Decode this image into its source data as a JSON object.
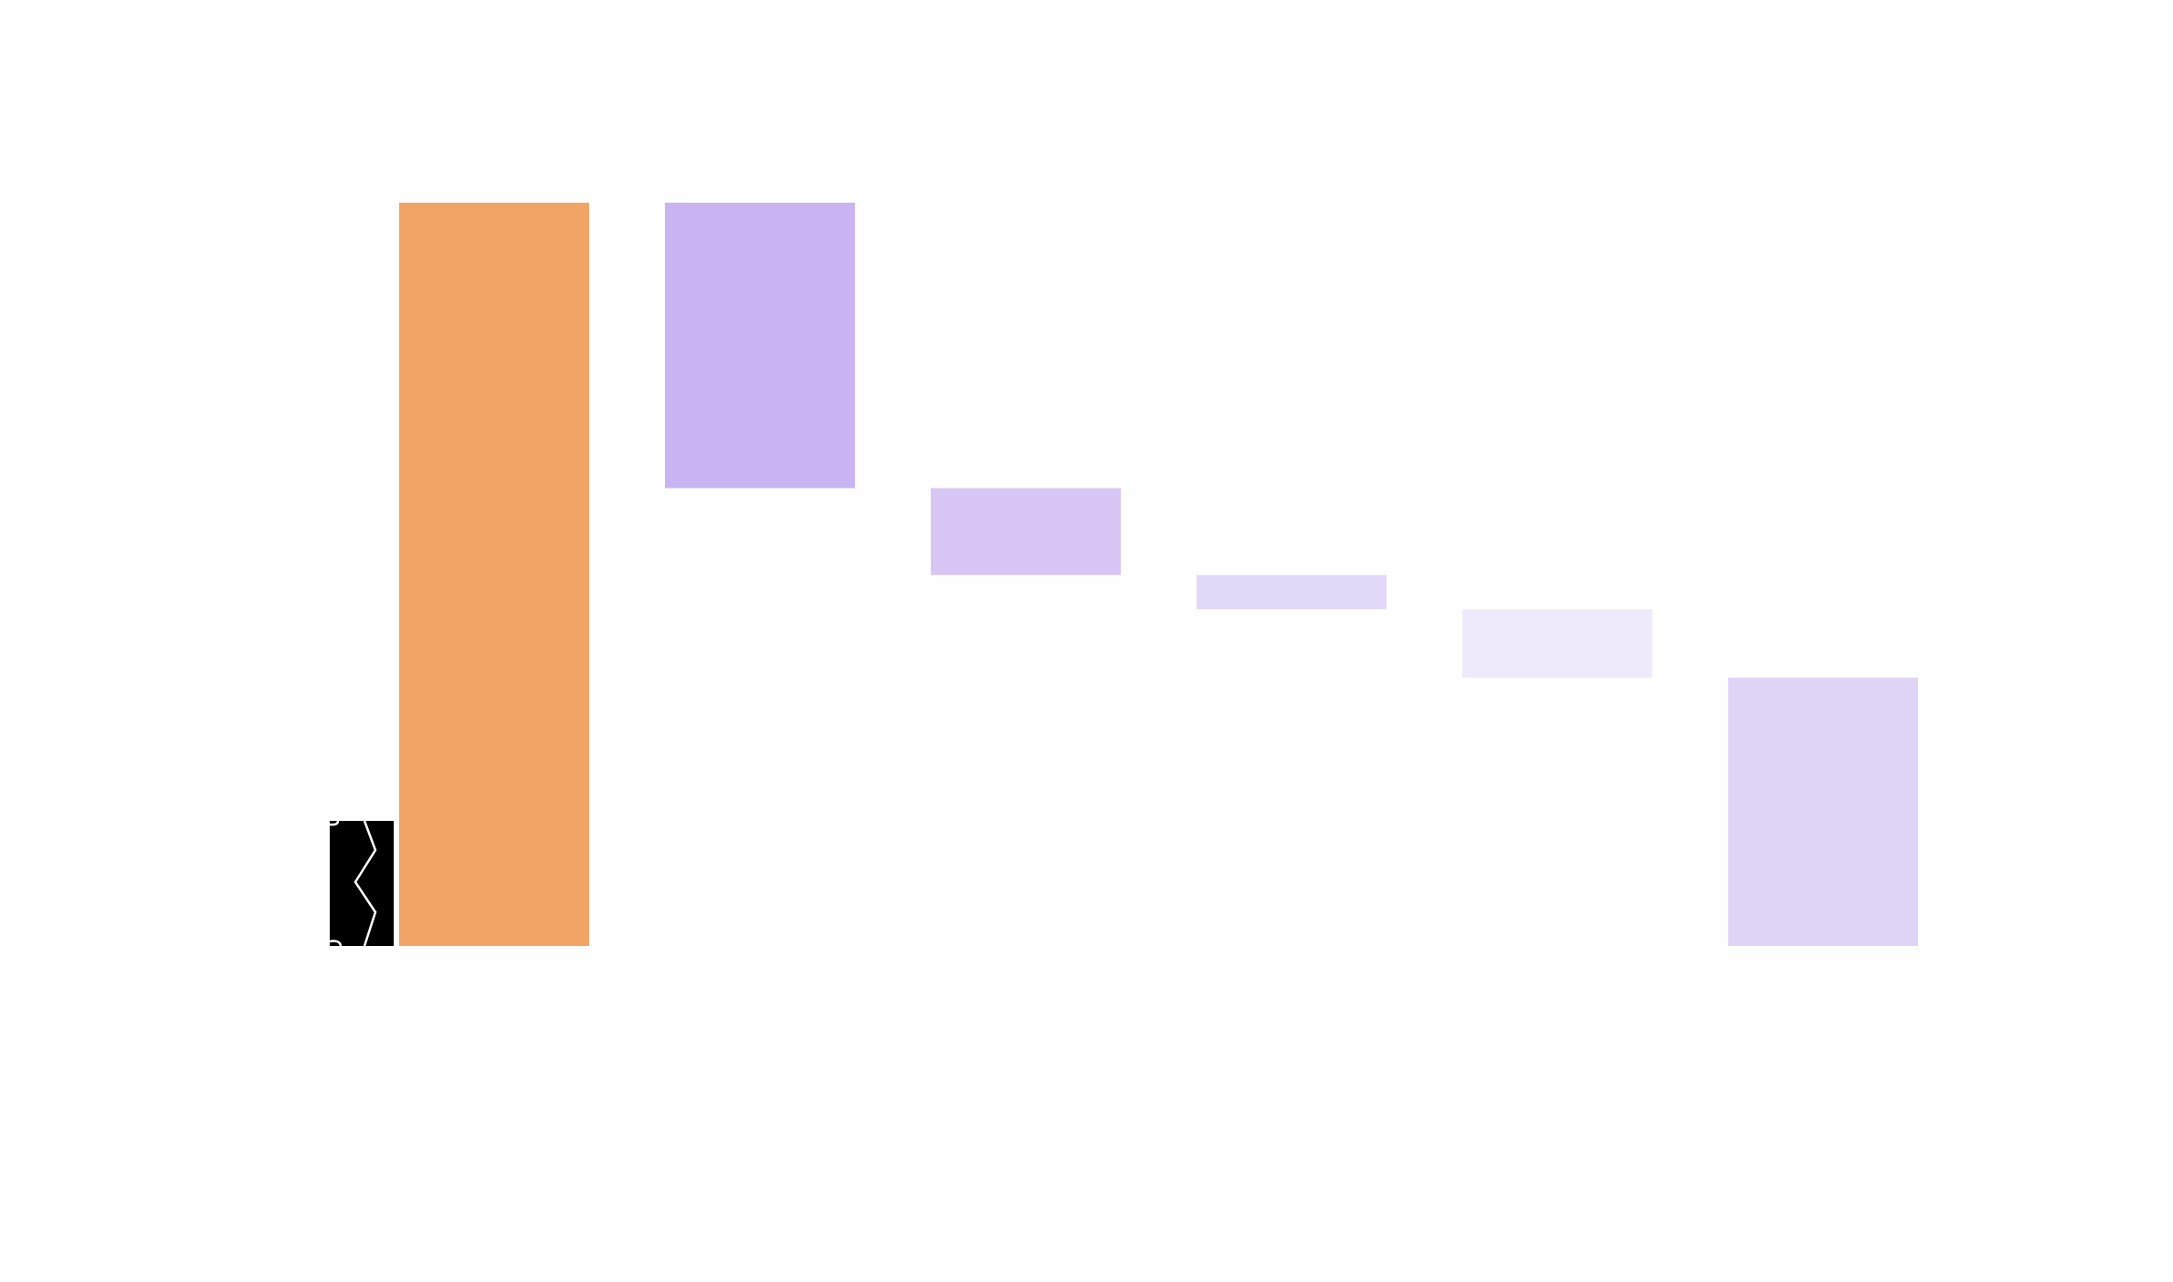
{
  "chart_data": {
    "type": "bar",
    "subtype": "waterfall",
    "title": "",
    "xlabel": "",
    "ylabel": "",
    "categories": [],
    "axis_break": true,
    "grid": false,
    "legend": "none",
    "ylim": [
      0,
      100
    ],
    "steps": [
      {
        "kind": "total",
        "start": 0,
        "end": 100,
        "color": "#f2a366"
      },
      {
        "kind": "decrease",
        "start": 100,
        "end": 61.6,
        "color": "#c7b4f1"
      },
      {
        "kind": "decrease",
        "start": 61.6,
        "end": 49.9,
        "color": "#d7c6f3"
      },
      {
        "kind": "decrease",
        "start": 49.9,
        "end": 45.3,
        "color": "#e2d8f7"
      },
      {
        "kind": "decrease",
        "start": 45.3,
        "end": 36.1,
        "color": "#efeafb"
      },
      {
        "kind": "total",
        "start": 36.1,
        "end": 0,
        "color": "#dfd3f6"
      }
    ]
  }
}
